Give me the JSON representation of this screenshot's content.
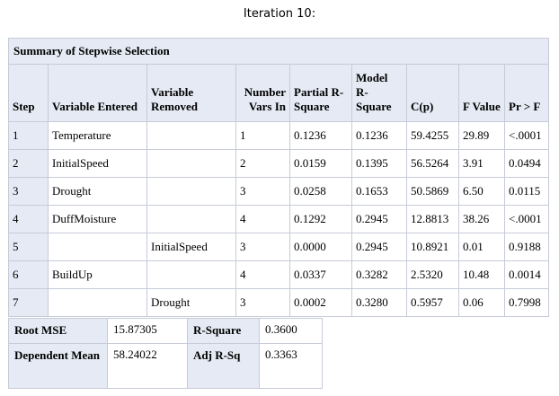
{
  "title": "Iteration 10:",
  "summary": {
    "caption": "Summary of Stepwise Selection",
    "headers": {
      "step": "Step",
      "entered": "Variable Entered",
      "removed": "Variable Removed",
      "vars_in": "Number Vars In",
      "partial_rsq": "Partial R-Square",
      "model_rsq": "Model R-Square",
      "cp": "C(p)",
      "f_value": "F Value",
      "pr_f": "Pr > F"
    },
    "rows": [
      {
        "step": "1",
        "entered": "Temperature",
        "removed": "",
        "vars_in": "1",
        "partial": "0.1236",
        "model": "0.1236",
        "cp": "59.4255",
        "f": "29.89",
        "p": "<.0001"
      },
      {
        "step": "2",
        "entered": "InitialSpeed",
        "removed": "",
        "vars_in": "2",
        "partial": "0.0159",
        "model": "0.1395",
        "cp": "56.5264",
        "f": "3.91",
        "p": "0.0494"
      },
      {
        "step": "3",
        "entered": "Drought",
        "removed": "",
        "vars_in": "3",
        "partial": "0.0258",
        "model": "0.1653",
        "cp": "50.5869",
        "f": "6.50",
        "p": "0.0115"
      },
      {
        "step": "4",
        "entered": "DuffMoisture",
        "removed": "",
        "vars_in": "4",
        "partial": "0.1292",
        "model": "0.2945",
        "cp": "12.8813",
        "f": "38.26",
        "p": "<.0001"
      },
      {
        "step": "5",
        "entered": "",
        "removed": "InitialSpeed",
        "vars_in": "3",
        "partial": "0.0000",
        "model": "0.2945",
        "cp": "10.8921",
        "f": "0.01",
        "p": "0.9188"
      },
      {
        "step": "6",
        "entered": "BuildUp",
        "removed": "",
        "vars_in": "4",
        "partial": "0.0337",
        "model": "0.3282",
        "cp": "2.5320",
        "f": "10.48",
        "p": "0.0014"
      },
      {
        "step": "7",
        "entered": "",
        "removed": "Drought",
        "vars_in": "3",
        "partial": "0.0002",
        "model": "0.3280",
        "cp": "0.5957",
        "f": "0.06",
        "p": "0.7998"
      }
    ]
  },
  "fit": {
    "root_mse_label": "Root MSE",
    "root_mse_value": "15.87305",
    "rsq_label": "R-Square",
    "rsq_value": "0.3600",
    "dep_mean_label": "Dependent Mean",
    "dep_mean_value": "58.24022",
    "adj_rsq_label": "Adj R-Sq",
    "adj_rsq_value": "0.3363"
  },
  "colors": {
    "header_bg": "#e5eaf4",
    "border": "#c6cbd8"
  }
}
